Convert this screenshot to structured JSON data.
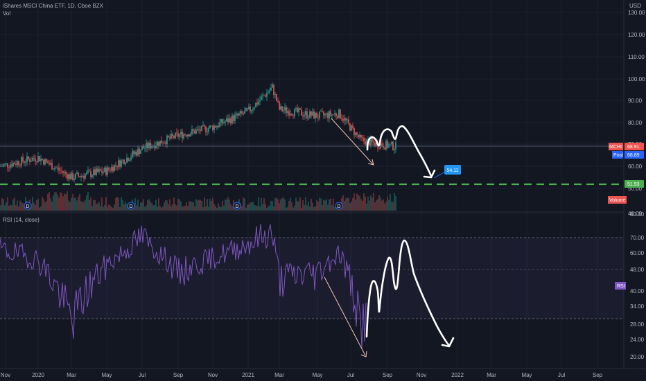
{
  "header": {
    "title": "iShares MSCI China ETF, 1D, Cboe BZX",
    "volume_label": "Vol",
    "currency": "USD"
  },
  "price_panel": {
    "price_axis_ticks": [
      "130.00",
      "120.00",
      "110.00",
      "100.00",
      "90.00",
      "80.00",
      "70.00",
      "60.00",
      "50.00",
      "40.00"
    ],
    "last_price_tag": {
      "symbol": "MCHI",
      "value": "68.91",
      "color": "#ef5350"
    },
    "post_price_tag": {
      "label": "Post",
      "value": "68.89",
      "color": "#2962ff"
    },
    "support_line_tag": {
      "value": "51.53",
      "color": "#4caf50"
    },
    "volume_tag": {
      "label": "Volume",
      "color": "#ef5350"
    },
    "target_callout": "54.11",
    "dividend_marker": "D"
  },
  "rsi_panel": {
    "title": "RSI (14, close)",
    "axis_ticks": [
      "80.00",
      "70.00",
      "60.00",
      "48.00",
      "40.00",
      "34.00",
      "28.00",
      "24.00",
      "20.00"
    ],
    "tag": "RSI",
    "upper_band": 70,
    "lower_band": 30,
    "line_color": "#7e57c2"
  },
  "time_axis": [
    "Nov",
    "2020",
    "Mar",
    "May",
    "Jul",
    "Sep",
    "Nov",
    "2021",
    "Mar",
    "May",
    "Jul",
    "Sep",
    "Nov",
    "2022",
    "Mar",
    "May",
    "Jul",
    "Sep"
  ],
  "chart_data": {
    "type": "line",
    "title": "iShares MSCI China ETF, 1D, Cboe BZX",
    "x": [
      "2019-11",
      "2020-01",
      "2020-03",
      "2020-05",
      "2020-07",
      "2020-09",
      "2020-11",
      "2021-01",
      "2021-02",
      "2021-03",
      "2021-05",
      "2021-06",
      "2021-07",
      "2021-08",
      "2021-09"
    ],
    "series": [
      {
        "name": "MCHI",
        "values": [
          60,
          64,
          55,
          58,
          68,
          74,
          78,
          85,
          96,
          86,
          83,
          84,
          72,
          70,
          68.91
        ]
      },
      {
        "name": "RSI (14, close)",
        "values": [
          62,
          55,
          30,
          52,
          70,
          48,
          56,
          66,
          72,
          45,
          48,
          60,
          28,
          40,
          52
        ]
      }
    ],
    "ylim": [
      40,
      130
    ],
    "support_level": 51.53,
    "last_close": 68.91,
    "post_market": 68.89,
    "target_annotation": 54.11
  }
}
